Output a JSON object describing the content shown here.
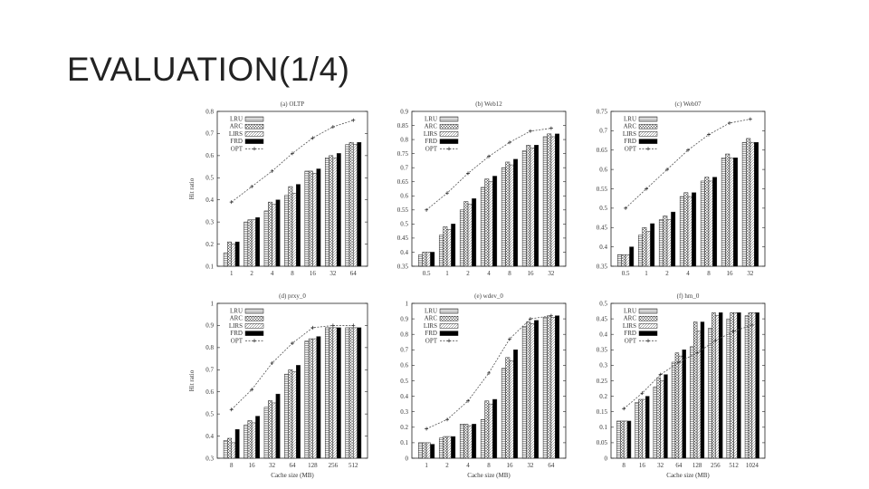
{
  "slide": {
    "title": "EVALUATION(1/4)"
  },
  "legend": [
    "LRU",
    "ARC",
    "LIRS",
    "FRD",
    "OPT"
  ],
  "colors": {
    "frame": "#222222",
    "text": "#333333",
    "FRD": "#000000",
    "bar_fill": "#ffffff"
  },
  "chart_data": [
    {
      "type": "bar",
      "title": "(a) OLTP",
      "categories": [
        "1",
        "2",
        "4",
        "8",
        "16",
        "32",
        "64"
      ],
      "ylabel": "Hit ratio",
      "xlabel": "",
      "ylim": [
        0.1,
        0.8
      ],
      "yticks": [
        "0.1",
        "0.2",
        "0.3",
        "0.4",
        "0.5",
        "0.6",
        "0.7",
        "0.8"
      ],
      "series": [
        {
          "name": "LRU",
          "values": [
            0.16,
            0.3,
            0.35,
            0.42,
            0.53,
            0.59,
            0.65
          ]
        },
        {
          "name": "ARC",
          "values": [
            0.21,
            0.31,
            0.39,
            0.46,
            0.53,
            0.6,
            0.66
          ]
        },
        {
          "name": "LIRS",
          "values": [
            0.2,
            0.31,
            0.38,
            0.43,
            0.52,
            0.59,
            0.65
          ]
        },
        {
          "name": "FRD",
          "values": [
            0.21,
            0.32,
            0.4,
            0.47,
            0.54,
            0.61,
            0.66
          ]
        },
        {
          "name": "OPT",
          "values": [
            0.39,
            0.46,
            0.53,
            0.61,
            0.68,
            0.73,
            0.76
          ]
        }
      ]
    },
    {
      "type": "bar",
      "title": "(b) Web12",
      "categories": [
        "0.5",
        "1",
        "2",
        "4",
        "8",
        "16",
        "32"
      ],
      "ylabel": "",
      "xlabel": "",
      "ylim": [
        0.35,
        0.9
      ],
      "yticks": [
        "0.35",
        "0.4",
        "0.45",
        "0.5",
        "0.55",
        "0.6",
        "0.65",
        "0.7",
        "0.75",
        "0.8",
        "0.85",
        "0.9"
      ],
      "series": [
        {
          "name": "LRU",
          "values": [
            0.39,
            0.46,
            0.55,
            0.63,
            0.7,
            0.76,
            0.81
          ]
        },
        {
          "name": "ARC",
          "values": [
            0.4,
            0.49,
            0.58,
            0.66,
            0.72,
            0.78,
            0.82
          ]
        },
        {
          "name": "LIRS",
          "values": [
            0.4,
            0.48,
            0.57,
            0.65,
            0.71,
            0.77,
            0.81
          ]
        },
        {
          "name": "FRD",
          "values": [
            0.4,
            0.5,
            0.59,
            0.67,
            0.73,
            0.78,
            0.82
          ]
        },
        {
          "name": "OPT",
          "values": [
            0.55,
            0.61,
            0.68,
            0.74,
            0.79,
            0.83,
            0.84
          ]
        }
      ]
    },
    {
      "type": "bar",
      "title": "(c) Web07",
      "categories": [
        "0.5",
        "1",
        "2",
        "4",
        "8",
        "16",
        "32"
      ],
      "ylabel": "",
      "xlabel": "",
      "ylim": [
        0.35,
        0.75
      ],
      "yticks": [
        "0.35",
        "0.4",
        "0.45",
        "0.5",
        "0.55",
        "0.6",
        "0.65",
        "0.7",
        "0.75"
      ],
      "series": [
        {
          "name": "LRU",
          "values": [
            0.38,
            0.43,
            0.47,
            0.53,
            0.57,
            0.63,
            0.67
          ]
        },
        {
          "name": "ARC",
          "values": [
            0.38,
            0.45,
            0.48,
            0.54,
            0.58,
            0.64,
            0.68
          ]
        },
        {
          "name": "LIRS",
          "values": [
            0.38,
            0.44,
            0.47,
            0.53,
            0.57,
            0.63,
            0.67
          ]
        },
        {
          "name": "FRD",
          "values": [
            0.4,
            0.46,
            0.49,
            0.54,
            0.58,
            0.63,
            0.67
          ]
        },
        {
          "name": "OPT",
          "values": [
            0.5,
            0.55,
            0.6,
            0.65,
            0.69,
            0.72,
            0.73
          ]
        }
      ]
    },
    {
      "type": "bar",
      "title": "(d) prxy_0",
      "categories": [
        "8",
        "16",
        "32",
        "64",
        "128",
        "256",
        "512"
      ],
      "ylabel": "Hit ratio",
      "xlabel": "Cache size (MB)",
      "ylim": [
        0.3,
        1.0
      ],
      "yticks": [
        "0.3",
        "0.4",
        "0.5",
        "0.6",
        "0.7",
        "0.8",
        "0.9",
        "1"
      ],
      "series": [
        {
          "name": "LRU",
          "values": [
            0.38,
            0.45,
            0.53,
            0.68,
            0.83,
            0.89,
            0.89
          ]
        },
        {
          "name": "ARC",
          "values": [
            0.39,
            0.47,
            0.56,
            0.7,
            0.84,
            0.89,
            0.89
          ]
        },
        {
          "name": "LIRS",
          "values": [
            0.37,
            0.46,
            0.55,
            0.69,
            0.84,
            0.89,
            0.89
          ]
        },
        {
          "name": "FRD",
          "values": [
            0.43,
            0.49,
            0.59,
            0.72,
            0.85,
            0.89,
            0.89
          ]
        },
        {
          "name": "OPT",
          "values": [
            0.52,
            0.61,
            0.73,
            0.82,
            0.89,
            0.9,
            0.9
          ]
        }
      ]
    },
    {
      "type": "bar",
      "title": "(e) wdev_0",
      "categories": [
        "1",
        "2",
        "4",
        "8",
        "16",
        "32",
        "64"
      ],
      "ylabel": "",
      "xlabel": "Cache size (MB)",
      "ylim": [
        0,
        1.0
      ],
      "yticks": [
        "0",
        "0.1",
        "0.2",
        "0.3",
        "0.4",
        "0.5",
        "0.6",
        "0.7",
        "0.8",
        "0.9",
        "1"
      ],
      "series": [
        {
          "name": "LRU",
          "values": [
            0.1,
            0.13,
            0.22,
            0.25,
            0.58,
            0.85,
            0.91
          ]
        },
        {
          "name": "ARC",
          "values": [
            0.1,
            0.14,
            0.22,
            0.37,
            0.65,
            0.88,
            0.92
          ]
        },
        {
          "name": "LIRS",
          "values": [
            0.1,
            0.14,
            0.21,
            0.35,
            0.63,
            0.87,
            0.91
          ]
        },
        {
          "name": "FRD",
          "values": [
            0.09,
            0.14,
            0.22,
            0.38,
            0.7,
            0.89,
            0.92
          ]
        },
        {
          "name": "OPT",
          "values": [
            0.19,
            0.25,
            0.37,
            0.55,
            0.77,
            0.9,
            0.92
          ]
        }
      ]
    },
    {
      "type": "bar",
      "title": "(f) hm_0",
      "categories": [
        "8",
        "16",
        "32",
        "64",
        "128",
        "256",
        "512",
        "1024"
      ],
      "ylabel": "",
      "xlabel": "Cache size (MB)",
      "ylim": [
        0,
        0.5
      ],
      "yticks": [
        "0",
        "0.05",
        "0.1",
        "0.15",
        "0.2",
        "0.25",
        "0.3",
        "0.35",
        "0.4",
        "0.45",
        "0.5"
      ],
      "series": [
        {
          "name": "LRU",
          "values": [
            0.12,
            0.18,
            0.23,
            0.31,
            0.36,
            0.42,
            0.45,
            0.46
          ]
        },
        {
          "name": "ARC",
          "values": [
            0.12,
            0.19,
            0.26,
            0.34,
            0.44,
            0.47,
            0.47,
            0.47
          ]
        },
        {
          "name": "LIRS",
          "values": [
            0.12,
            0.19,
            0.25,
            0.33,
            0.41,
            0.46,
            0.47,
            0.47
          ]
        },
        {
          "name": "FRD",
          "values": [
            0.12,
            0.2,
            0.27,
            0.35,
            0.44,
            0.47,
            0.47,
            0.47
          ]
        },
        {
          "name": "OPT",
          "values": [
            0.16,
            0.21,
            0.27,
            0.31,
            0.34,
            0.38,
            0.41,
            0.43
          ]
        }
      ]
    }
  ]
}
